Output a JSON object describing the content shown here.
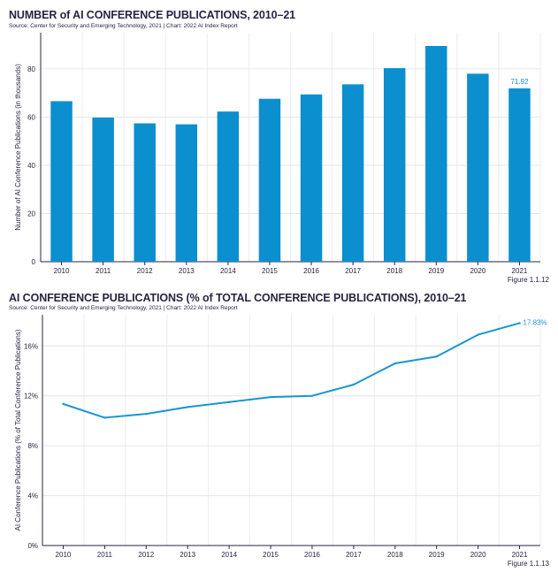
{
  "chart_data": [
    {
      "type": "bar",
      "title": "NUMBER of AI CONFERENCE PUBLICATIONS, 2010–21",
      "source": "Source: Center for Security and Emerging Technology, 2021 | Chart: 2022 AI Index Report",
      "ylabel": "Number of AI Conference Publications (in thousands)",
      "categories": [
        "2010",
        "2011",
        "2012",
        "2013",
        "2014",
        "2015",
        "2016",
        "2017",
        "2018",
        "2019",
        "2020",
        "2021"
      ],
      "values": [
        66.6,
        59.8,
        57.4,
        57.0,
        62.3,
        67.6,
        69.4,
        73.6,
        80.3,
        89.5,
        78.0,
        71.92
      ],
      "ylim": [
        0,
        95
      ],
      "yticks": [
        0,
        20,
        40,
        60,
        80
      ],
      "ytick_labels": [
        "0",
        "20",
        "40",
        "60",
        "80"
      ],
      "data_labels": [
        {
          "index": 11,
          "text": "71.92"
        }
      ],
      "bar_color": "#0b8fcf",
      "grid": true,
      "figure_label": "Figure 1.1.12"
    },
    {
      "type": "line",
      "title": "AI CONFERENCE PUBLICATIONS (% of TOTAL CONFERENCE PUBLICATIONS), 2010–21",
      "source": "Source: Center for Security and Emerging Technology, 2021 | Chart: 2022 AI Index Report",
      "ylabel": "AI Conference Publications (% of Total Conference Publications)",
      "x": [
        "2010",
        "2011",
        "2012",
        "2013",
        "2014",
        "2015",
        "2016",
        "2017",
        "2018",
        "2019",
        "2020",
        "2021"
      ],
      "values": [
        11.35,
        10.25,
        10.55,
        11.1,
        11.5,
        11.9,
        12.0,
        12.9,
        14.6,
        15.15,
        16.9,
        17.83
      ],
      "ylim": [
        0,
        18.5
      ],
      "yticks": [
        0,
        4,
        8,
        12,
        16
      ],
      "ytick_labels": [
        "0%",
        "4%",
        "8%",
        "12%",
        "16%"
      ],
      "data_labels": [
        {
          "index": 11,
          "text": "17.83%"
        }
      ],
      "line_color": "#1b95d1",
      "grid": true,
      "figure_label": "Figure 1.1.13"
    }
  ]
}
